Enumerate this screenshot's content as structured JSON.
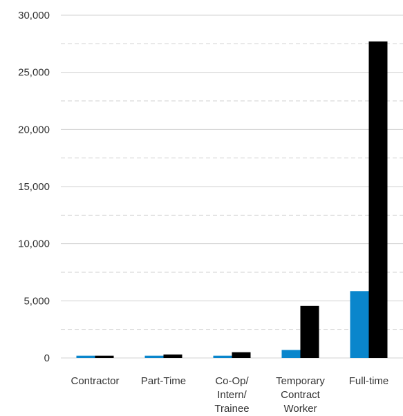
{
  "chart_data": {
    "type": "bar",
    "title": "",
    "xlabel": "",
    "ylabel": "",
    "ylim": [
      0,
      30000
    ],
    "yticks": [
      0,
      5000,
      10000,
      15000,
      20000,
      25000,
      30000
    ],
    "ytick_labels": [
      "0",
      "5,000",
      "10,000",
      "15,000",
      "20,000",
      "25,000",
      "30,000"
    ],
    "grid": true,
    "legend": "none",
    "categories": [
      [
        "Contractor"
      ],
      [
        "Part-Time"
      ],
      [
        "Co-Op/",
        "Intern/",
        "Trainee"
      ],
      [
        "Temporary",
        "Contract",
        "Worker"
      ],
      [
        "Full-time"
      ]
    ],
    "series": [
      {
        "color": "#0a86cc",
        "values": [
          200,
          200,
          200,
          700,
          5850
        ]
      },
      {
        "color": "#000000",
        "values": [
          200,
          300,
          500,
          4550,
          27700
        ]
      }
    ]
  }
}
